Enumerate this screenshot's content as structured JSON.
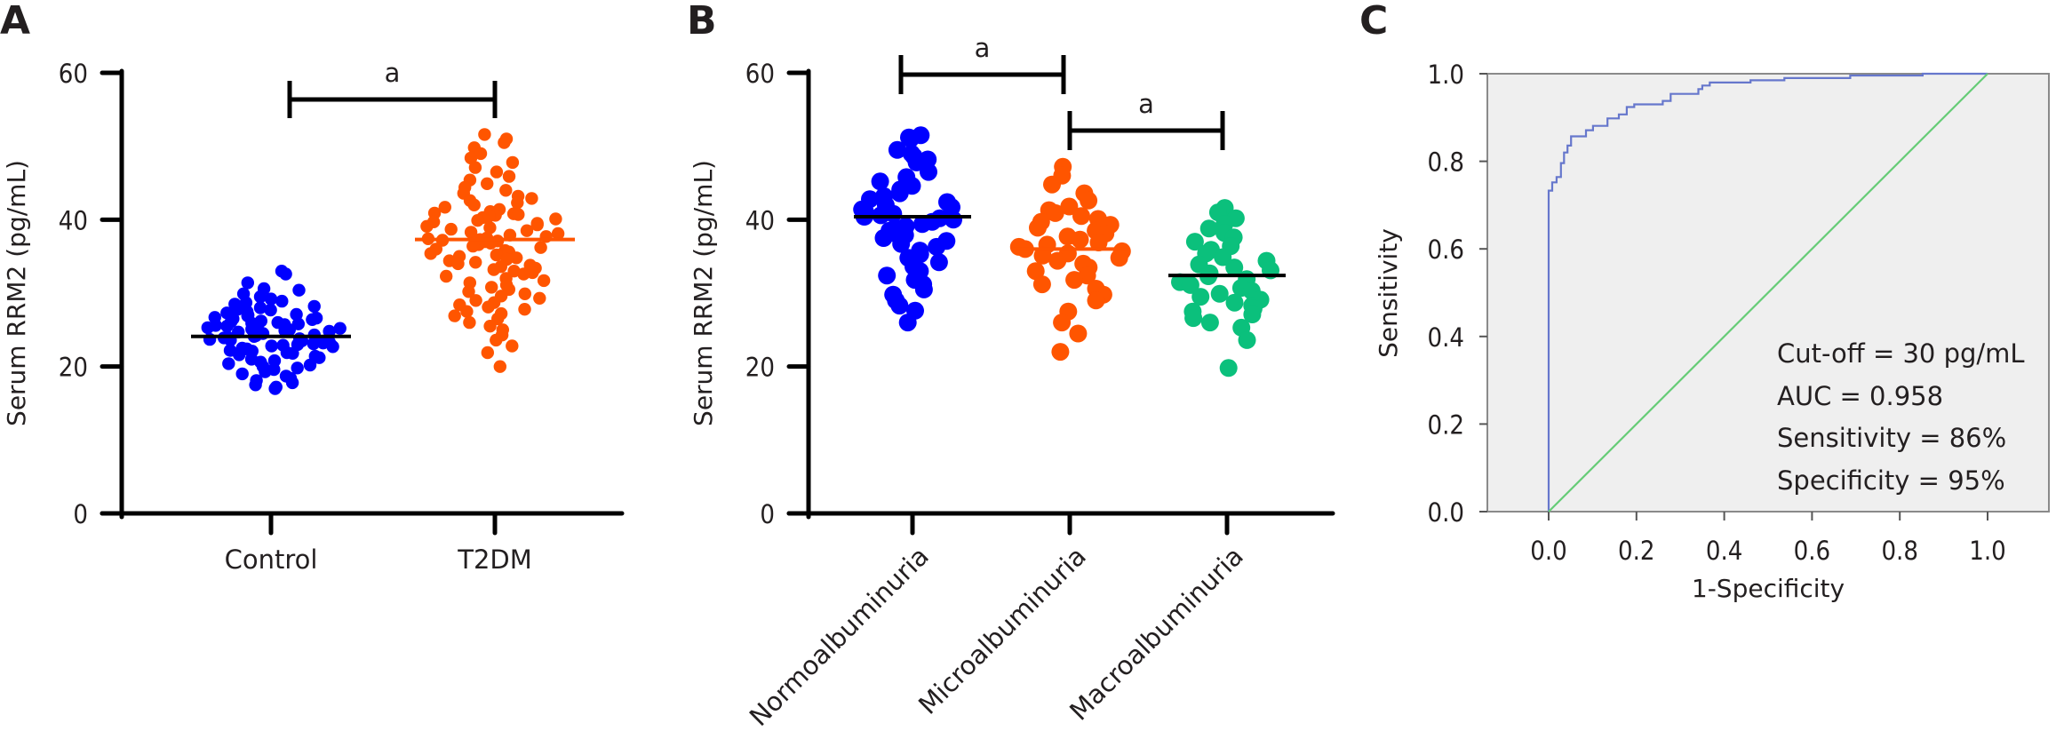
{
  "figure": {
    "panel_letters": [
      "A",
      "B",
      "C"
    ]
  },
  "chart_data": [
    {
      "type": "scatter",
      "subtype": "dot-plot",
      "panel": "A",
      "title": "",
      "xlabel": "",
      "ylabel": "Serum RRM2 (pg/mL)",
      "ylim": [
        0,
        60
      ],
      "yticks": [
        "0",
        "20",
        "40",
        "60"
      ],
      "categories": [
        "Control",
        "T2DM"
      ],
      "colors": {
        "Control": "#0000ff",
        "T2DM": "#ff5500",
        "mean_line_Control": "#000000",
        "mean_line_T2DM": "#ff5500"
      },
      "means": {
        "Control": 24.1,
        "T2DM": 37.3
      },
      "significance": [
        {
          "from": "Control",
          "to": "T2DM",
          "label": "a"
        }
      ],
      "series": [
        {
          "name": "Control",
          "values": [
            33.0,
            32.6,
            31.4,
            30.6,
            30.4,
            29.9,
            29.5,
            29.2,
            28.9,
            28.7,
            28.5,
            28.2,
            28.0,
            27.8,
            27.7,
            27.5,
            27.3,
            27.1,
            27.0,
            26.9,
            26.7,
            26.6,
            26.5,
            26.4,
            26.2,
            26.1,
            26.0,
            25.9,
            25.8,
            25.7,
            25.6,
            25.5,
            25.4,
            25.3,
            25.2,
            25.1,
            25.0,
            24.9,
            24.8,
            24.7,
            24.6,
            24.5,
            24.4,
            24.3,
            24.2,
            24.1,
            24.0,
            23.9,
            23.8,
            23.7,
            23.6,
            23.5,
            23.4,
            23.3,
            23.2,
            23.1,
            23.0,
            22.9,
            22.8,
            22.7,
            22.5,
            22.4,
            22.2,
            22.1,
            21.9,
            21.8,
            21.6,
            21.4,
            21.2,
            21.0,
            20.8,
            20.6,
            20.4,
            20.2,
            20.0,
            19.8,
            19.6,
            19.3,
            19.0,
            18.7,
            18.4,
            18.1,
            17.8,
            17.5,
            17.2,
            17.0
          ]
        },
        {
          "name": "T2DM",
          "values": [
            51.6,
            51.0,
            50.5,
            49.8,
            49.0,
            48.4,
            47.8,
            47.1,
            46.5,
            45.9,
            45.4,
            44.9,
            44.4,
            44.0,
            43.6,
            43.2,
            42.9,
            42.6,
            42.3,
            42.0,
            41.7,
            41.4,
            41.1,
            40.9,
            40.8,
            40.7,
            40.6,
            40.5,
            40.3,
            40.1,
            39.9,
            39.7,
            39.5,
            39.3,
            39.1,
            38.9,
            38.7,
            38.5,
            38.3,
            38.1,
            37.9,
            37.7,
            37.5,
            37.4,
            37.3,
            37.2,
            37.1,
            37.0,
            36.8,
            36.6,
            36.4,
            36.2,
            36.0,
            35.8,
            35.6,
            35.4,
            35.2,
            35.0,
            34.8,
            34.6,
            34.4,
            34.2,
            34.0,
            33.8,
            33.6,
            33.4,
            33.2,
            33.0,
            32.8,
            32.6,
            32.3,
            32.0,
            31.7,
            31.4,
            31.1,
            30.8,
            30.5,
            30.2,
            29.9,
            29.6,
            29.3,
            29.0,
            28.7,
            28.4,
            28.1,
            27.8,
            27.5,
            27.2,
            26.9,
            26.5,
            26.0,
            25.5,
            25.0,
            24.3,
            23.6,
            22.8,
            21.9,
            20.0
          ]
        }
      ]
    },
    {
      "type": "scatter",
      "subtype": "dot-plot",
      "panel": "B",
      "title": "",
      "xlabel": "",
      "ylabel": "Serum RRM2 (pg/mL)",
      "ylim": [
        0,
        60
      ],
      "yticks": [
        "0",
        "20",
        "40",
        "60"
      ],
      "categories": [
        "Normoalbuminuria",
        "Microalbuminuria",
        "Macroalbuminuria"
      ],
      "colors": {
        "Normoalbuminuria": "#0000ff",
        "Microalbuminuria": "#ff5500",
        "Macroalbuminuria": "#0bc07c",
        "mean_line_Normoalbuminuria": "#000000",
        "mean_line_Microalbuminuria": "#ff5500",
        "mean_line_Macroalbuminuria": "#000000"
      },
      "means": {
        "Normoalbuminuria": 40.4,
        "Microalbuminuria": 36.0,
        "Macroalbuminuria": 32.4
      },
      "significance": [
        {
          "from": "Normoalbuminuria",
          "to": "Microalbuminuria",
          "label": "a"
        },
        {
          "from": "Microalbuminuria",
          "to": "Macroalbuminuria",
          "label": "a"
        }
      ],
      "series": [
        {
          "name": "Normoalbuminuria",
          "values": [
            51.5,
            51.2,
            51.0,
            49.5,
            49.0,
            48.6,
            48.2,
            47.8,
            46.5,
            45.8,
            45.2,
            44.6,
            44.1,
            43.6,
            43.2,
            42.8,
            42.4,
            42.0,
            41.7,
            41.4,
            41.1,
            40.8,
            40.6,
            40.4,
            40.2,
            40.0,
            39.7,
            39.4,
            39.1,
            38.8,
            38.5,
            38.2,
            37.9,
            37.5,
            37.1,
            36.7,
            36.3,
            35.8,
            35.3,
            34.8,
            34.2,
            33.6,
            33.0,
            32.4,
            31.8,
            31.2,
            30.5,
            29.8,
            29.0,
            28.3,
            27.6,
            26.0
          ]
        },
        {
          "name": "Microalbuminuria",
          "values": [
            47.2,
            46.0,
            44.8,
            43.6,
            42.6,
            41.8,
            41.3,
            40.9,
            40.5,
            40.1,
            39.7,
            39.3,
            38.9,
            38.5,
            38.1,
            37.7,
            37.3,
            36.9,
            36.6,
            36.3,
            36.0,
            35.7,
            35.4,
            35.1,
            34.8,
            34.4,
            34.0,
            33.5,
            33.0,
            32.4,
            31.8,
            31.2,
            30.6,
            29.8,
            29.0,
            27.5,
            26.0,
            24.5,
            22.0
          ]
        },
        {
          "name": "Macroalbuminuria",
          "values": [
            41.6,
            41.0,
            40.2,
            39.4,
            38.8,
            38.2,
            37.6,
            37.0,
            36.4,
            35.9,
            35.4,
            34.9,
            34.4,
            33.9,
            33.5,
            33.1,
            32.7,
            32.3,
            31.9,
            31.5,
            31.1,
            30.7,
            30.3,
            29.9,
            29.5,
            29.1,
            28.7,
            28.3,
            27.9,
            27.5,
            27.1,
            26.6,
            26.0,
            25.3,
            23.6,
            19.8
          ]
        }
      ]
    },
    {
      "type": "line",
      "subtype": "roc-curve",
      "panel": "C",
      "title": "",
      "xlabel": "1-Specificity",
      "ylabel": "Sensitivity",
      "xlim": [
        0,
        1
      ],
      "ylim": [
        0,
        1
      ],
      "xticks": [
        "0.0",
        "0.2",
        "0.4",
        "0.6",
        "0.8",
        "1.0"
      ],
      "yticks": [
        "0.0",
        "0.2",
        "0.4",
        "0.6",
        "0.8",
        "1.0"
      ],
      "grid": false,
      "background": "#efefef",
      "series": [
        {
          "name": "ROC",
          "color": "#6677cc",
          "x": [
            0.0,
            0.0,
            0.008,
            0.008,
            0.018,
            0.018,
            0.028,
            0.028,
            0.035,
            0.035,
            0.043,
            0.043,
            0.051,
            0.051,
            0.085,
            0.085,
            0.101,
            0.101,
            0.134,
            0.134,
            0.16,
            0.16,
            0.178,
            0.178,
            0.195,
            0.195,
            0.26,
            0.26,
            0.278,
            0.278,
            0.341,
            0.341,
            0.35,
            0.35,
            0.367,
            0.367,
            0.46,
            0.46,
            0.537,
            0.537,
            0.687,
            0.687,
            0.852,
            0.852,
            1.0
          ],
          "y": [
            0.0,
            0.733,
            0.733,
            0.752,
            0.752,
            0.764,
            0.764,
            0.796,
            0.796,
            0.82,
            0.82,
            0.836,
            0.836,
            0.857,
            0.857,
            0.871,
            0.871,
            0.881,
            0.881,
            0.898,
            0.898,
            0.907,
            0.907,
            0.924,
            0.924,
            0.93,
            0.93,
            0.938,
            0.938,
            0.954,
            0.954,
            0.965,
            0.965,
            0.973,
            0.973,
            0.98,
            0.98,
            0.985,
            0.985,
            0.99,
            0.99,
            0.996,
            0.996,
            1.0,
            1.0
          ]
        },
        {
          "name": "Reference",
          "color": "#66cc77",
          "x": [
            0.0,
            1.0
          ],
          "y": [
            0.0,
            1.0
          ]
        }
      ],
      "annotations": [
        "Cut-off = 30 pg/mL",
        "AUC = 0.958",
        "Sensitivity = 86%",
        "Specificity = 95%"
      ]
    }
  ]
}
